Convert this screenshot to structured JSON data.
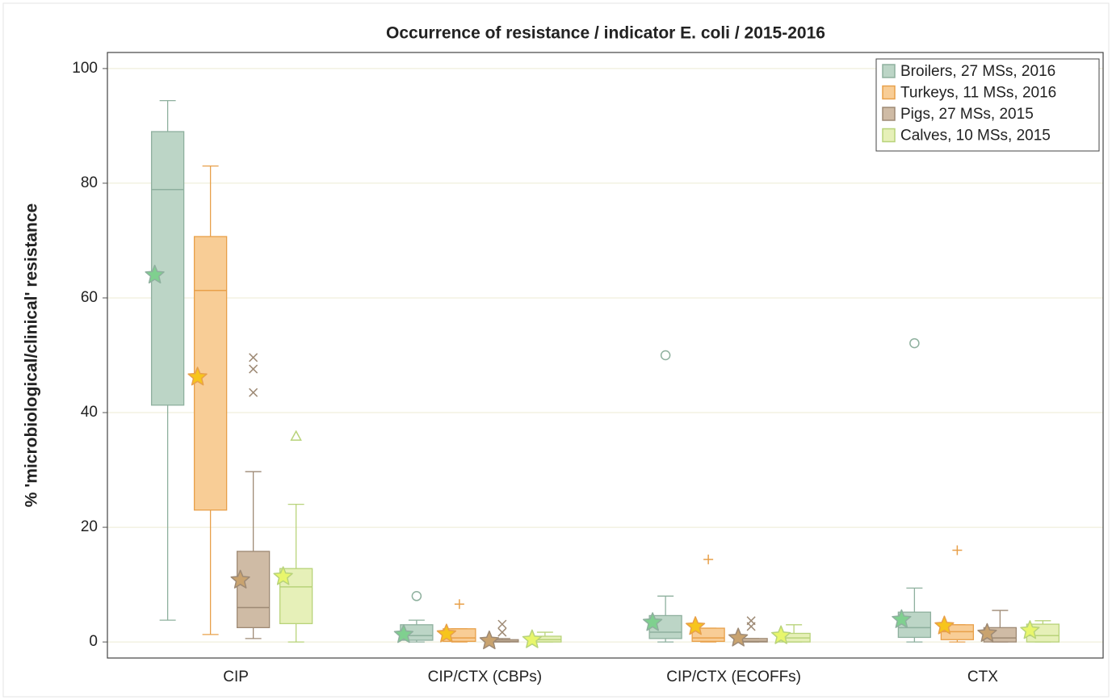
{
  "chart_data": {
    "type": "box",
    "title": "Occurrence of resistance / indicator E. coli / 2015-2016",
    "y_label": "% 'microbiological/clinical' resistance",
    "categories": [
      "CIP",
      "CIP/CTX (CBPs)",
      "CIP/CTX (ECOFFs)",
      "CTX"
    ],
    "ylim": [
      -2.8,
      102.8
    ],
    "yticks": [
      0,
      20,
      40,
      60,
      80,
      100
    ],
    "grid": true,
    "legend": "top-right",
    "series": [
      {
        "name": "Broilers, 27 MSs, 2016",
        "color": "#bcd5c6",
        "stroke": "#8eb09e",
        "mean_color": "#7fd08f",
        "marker": "circle",
        "min": [
          3.8,
          0,
          0,
          0
        ],
        "q1": [
          41.3,
          0.3,
          0.6,
          0.8
        ],
        "median": [
          78.9,
          1.1,
          1.7,
          2.5
        ],
        "q3": [
          89,
          3,
          4.6,
          5.2
        ],
        "max": [
          94.4,
          3.8,
          8,
          9.4
        ],
        "mean": [
          64,
          1.3,
          3.4,
          3.9
        ],
        "outliers": [
          [],
          [
            8
          ],
          [
            50
          ],
          [
            52.1
          ]
        ]
      },
      {
        "name": "Turkeys, 11 MSs, 2016",
        "color": "#f8cd96",
        "stroke": "#e8a04a",
        "mean_color": "#f7c51c",
        "marker": "plus",
        "min": [
          1.3,
          0,
          0,
          0
        ],
        "q1": [
          23,
          0.1,
          0.1,
          0.4
        ],
        "median": [
          61.3,
          0.7,
          0.7,
          1.8
        ],
        "q3": [
          70.7,
          2.3,
          2.4,
          3
        ],
        "max": [
          83,
          2.3,
          2.4,
          3
        ],
        "mean": [
          46.2,
          1.4,
          2.7,
          2.8
        ],
        "outliers": [
          [],
          [
            6.6
          ],
          [
            14.4
          ],
          [
            16
          ]
        ]
      },
      {
        "name": "Pigs, 27 MSs, 2015",
        "color": "#cfbba5",
        "stroke": "#9e8a75",
        "mean_color": "#c9a36f",
        "marker": "x",
        "min": [
          0.6,
          0,
          0,
          0
        ],
        "q1": [
          2.5,
          0,
          0,
          0
        ],
        "median": [
          6,
          0.1,
          0.1,
          0.7
        ],
        "q3": [
          15.8,
          0.4,
          0.6,
          2.5
        ],
        "max": [
          29.7,
          0.6,
          0.6,
          5.5
        ],
        "mean": [
          10.8,
          0.2,
          0.7,
          1.5
        ],
        "outliers": [
          [
            49.6,
            47.6,
            43.5
          ],
          [
            3.1,
            1.7
          ],
          [
            3.7,
            2.7
          ],
          []
        ]
      },
      {
        "name": "Calves, 10 MSs, 2015",
        "color": "#e6f0b8",
        "stroke": "#b8d37a",
        "mean_color": "#e8f66c",
        "marker": "triangle",
        "min": [
          0,
          0,
          0,
          0
        ],
        "q1": [
          3.2,
          0,
          0,
          0
        ],
        "median": [
          9.6,
          0.4,
          0.7,
          1.1
        ],
        "q3": [
          12.8,
          1,
          1.5,
          3.1
        ],
        "max": [
          24,
          1.7,
          3,
          3.7
        ],
        "mean": [
          11.4,
          0.4,
          1.1,
          2
        ],
        "outliers": [
          [
            35.9
          ],
          [],
          [],
          []
        ]
      }
    ]
  }
}
